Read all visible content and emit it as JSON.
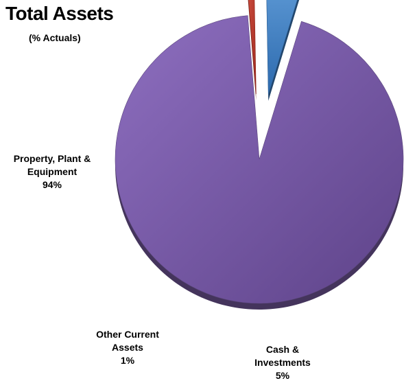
{
  "chart_data": {
    "type": "pie",
    "title": "Total Assets",
    "subtitle": "(% Actuals)",
    "slices": [
      {
        "name_lines": [
          "Property, Plant &",
          "Equipment"
        ],
        "value": 94,
        "value_label": "94%",
        "color": "#7b5ea7",
        "exploded": false
      },
      {
        "name_lines": [
          "Other Current",
          "Assets"
        ],
        "value": 1,
        "value_label": "1%",
        "color": "#c0392b",
        "exploded": true
      },
      {
        "name_lines": [
          "Cash &",
          "Investments"
        ],
        "value": 5,
        "value_label": "5%",
        "color": "#3d7fc4",
        "exploded": true
      }
    ],
    "style": "3d-exploded"
  }
}
